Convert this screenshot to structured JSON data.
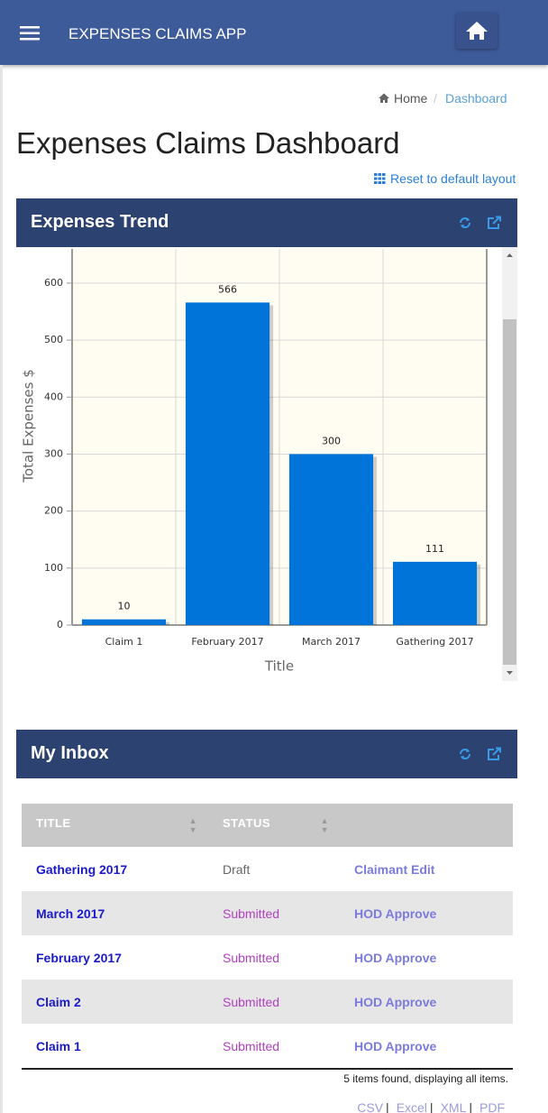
{
  "header": {
    "title": "EXPENSES CLAIMS APP"
  },
  "breadcrumb": {
    "items": [
      "Home",
      "Dashboard"
    ],
    "separator": "/"
  },
  "page_title": "Expenses Claims Dashboard",
  "reset_link": "Reset to default layout",
  "panels": [
    "Expenses Trend",
    "My Inbox"
  ],
  "chart_data": {
    "type": "bar",
    "categories": [
      "Claim 1",
      "February 2017",
      "March 2017",
      "Gathering 2017"
    ],
    "values": [
      10,
      566,
      300,
      111
    ],
    "color": "#0074d9",
    "xlabel": "Title",
    "ylabel": "Total Expenses $",
    "ylim": [
      0,
      660
    ],
    "yticks": [
      0,
      100,
      200,
      300,
      400,
      500,
      600
    ],
    "grid": true
  },
  "inbox": {
    "columns": [
      "TITLE",
      "STATUS"
    ],
    "rows": [
      [
        "Gathering 2017",
        "Draft",
        "Claimant Edit"
      ],
      [
        "March 2017",
        "Submitted",
        "HOD Approve"
      ],
      [
        "February 2017",
        "Submitted",
        "HOD Approve"
      ],
      [
        "Claim 2",
        "Submitted",
        "HOD Approve"
      ],
      [
        "Claim 1",
        "Submitted",
        "HOD Approve"
      ]
    ],
    "summary": "5 items found, displaying all items.",
    "exports": [
      "CSV",
      "Excel",
      "XML",
      "PDF"
    ],
    "export_separator": "|"
  }
}
